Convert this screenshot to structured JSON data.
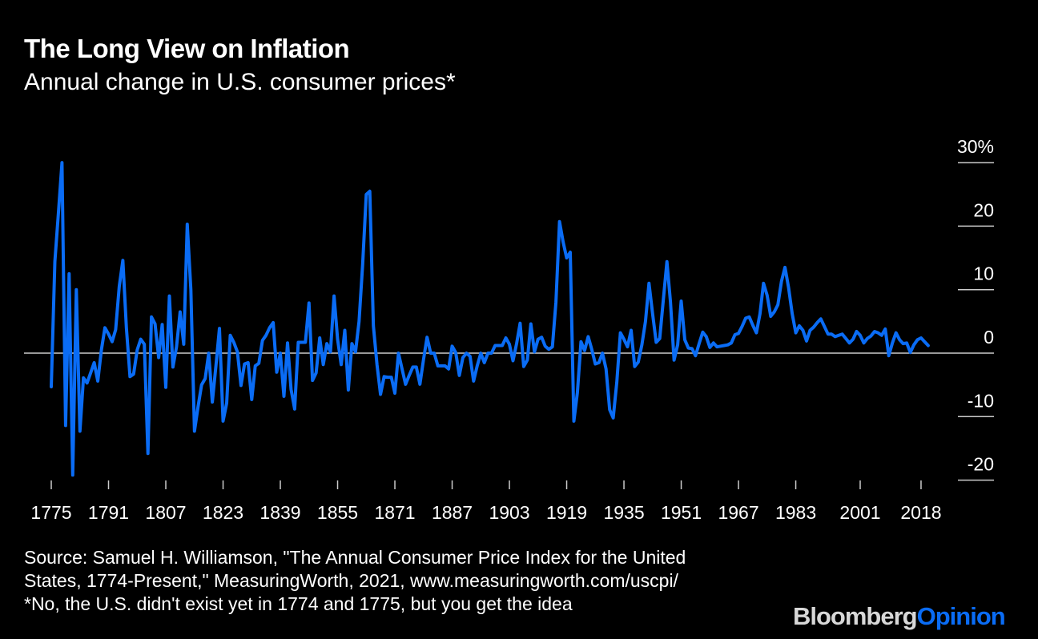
{
  "title": "The Long View on Inflation",
  "subtitle": "Annual change in U.S. consumer prices*",
  "source_line1": "Source: Samuel H. Williamson, \"The Annual Consumer Price Index for the United",
  "source_line2": "States, 1774-Present,\" MeasuringWorth, 2021, www.measuringworth.com/uscpi/",
  "footnote": "*No, the U.S. didn't exist yet in 1774 and 1775, but you get the idea",
  "logo": {
    "part1": "Bloomberg",
    "part2": "Opinion"
  },
  "colors": {
    "background": "#000000",
    "line": "#0a6cf5",
    "axis": "#cccccc"
  },
  "chart_data": {
    "type": "line",
    "title": "The Long View on Inflation",
    "subtitle": "Annual change in U.S. consumer prices*",
    "xlabel": "",
    "ylabel": "",
    "ylim": [
      -20,
      30
    ],
    "y_unit": "%",
    "y_axis_position": "right",
    "y_ticks": [
      30,
      20,
      10,
      0,
      -10,
      -20
    ],
    "y_tick_labels": [
      "30%",
      "20",
      "10",
      "0",
      "-10",
      "-20"
    ],
    "x_ticks": [
      1775,
      1791,
      1807,
      1823,
      1839,
      1855,
      1871,
      1887,
      1903,
      1919,
      1935,
      1951,
      1967,
      1983,
      2001,
      2018
    ],
    "x_tick_labels": [
      "1775",
      "1791",
      "1807",
      "1823",
      "1839",
      "1855",
      "1871",
      "1887",
      "1903",
      "1919",
      "1935",
      "1951",
      "1967",
      "1983",
      "2001",
      "2018"
    ],
    "grid": false,
    "legend": "none",
    "series": [
      {
        "color": "#0a6cf5",
        "points": [
          [
            1775,
            -5.3
          ],
          [
            1776,
            14.4
          ],
          [
            1777,
            22
          ],
          [
            1778,
            30
          ],
          [
            1779,
            -11.4
          ],
          [
            1780,
            12.5
          ],
          [
            1781,
            -19.2
          ],
          [
            1782,
            10
          ],
          [
            1783,
            -12.3
          ],
          [
            1784,
            -3.9
          ],
          [
            1785,
            -4.7
          ],
          [
            1786,
            -3.1
          ],
          [
            1787,
            -1.5
          ],
          [
            1788,
            -4.4
          ],
          [
            1789,
            0.5
          ],
          [
            1790,
            4.0
          ],
          [
            1791,
            3.0
          ],
          [
            1792,
            1.8
          ],
          [
            1793,
            3.7
          ],
          [
            1794,
            10.5
          ],
          [
            1795,
            14.6
          ],
          [
            1796,
            4
          ],
          [
            1797,
            -3.7
          ],
          [
            1798,
            -3.3
          ],
          [
            1799,
            0.5
          ],
          [
            1800,
            2.2
          ],
          [
            1801,
            1.4
          ],
          [
            1802,
            -15.8
          ],
          [
            1803,
            5.7
          ],
          [
            1804,
            4.6
          ],
          [
            1805,
            -0.7
          ],
          [
            1806,
            4.5
          ],
          [
            1807,
            -5.4
          ],
          [
            1808,
            9.0
          ],
          [
            1809,
            -2.2
          ],
          [
            1810,
            1.0
          ],
          [
            1811,
            6.5
          ],
          [
            1812,
            1.4
          ],
          [
            1813,
            20.3
          ],
          [
            1814,
            10
          ],
          [
            1815,
            -12.3
          ],
          [
            1816,
            -8.5
          ],
          [
            1817,
            -5.0
          ],
          [
            1818,
            -4.0
          ],
          [
            1819,
            0.0
          ],
          [
            1820,
            -7.7
          ],
          [
            1821,
            -2.0
          ],
          [
            1822,
            3.9
          ],
          [
            1823,
            -10.7
          ],
          [
            1824,
            -7.9
          ],
          [
            1825,
            2.8
          ],
          [
            1826,
            1.7
          ],
          [
            1827,
            0.2
          ],
          [
            1828,
            -5.1
          ],
          [
            1829,
            -1.7
          ],
          [
            1830,
            -1.5
          ],
          [
            1831,
            -7.3
          ],
          [
            1832,
            -2.0
          ],
          [
            1833,
            -1.6
          ],
          [
            1834,
            2.0
          ],
          [
            1835,
            2.8
          ],
          [
            1836,
            4.0
          ],
          [
            1837,
            4.8
          ],
          [
            1838,
            -3.0
          ],
          [
            1839,
            0.0
          ],
          [
            1840,
            -6.8
          ],
          [
            1841,
            1.6
          ],
          [
            1842,
            -5.7
          ],
          [
            1843,
            -8.8
          ],
          [
            1844,
            1.7
          ],
          [
            1845,
            1.7
          ],
          [
            1846,
            1.7
          ],
          [
            1847,
            7.9
          ],
          [
            1848,
            -4.3
          ],
          [
            1849,
            -3.1
          ],
          [
            1850,
            2.4
          ],
          [
            1851,
            -1.8
          ],
          [
            1852,
            1.5
          ],
          [
            1853,
            0.2
          ],
          [
            1854,
            9.0
          ],
          [
            1855,
            2.2
          ],
          [
            1856,
            -1.8
          ],
          [
            1857,
            3.6
          ],
          [
            1858,
            -5.8
          ],
          [
            1859,
            1.5
          ],
          [
            1860,
            0.2
          ],
          [
            1861,
            5.0
          ],
          [
            1862,
            14.0
          ],
          [
            1863,
            25.0
          ],
          [
            1864,
            25.5
          ],
          [
            1865,
            4.3
          ],
          [
            1866,
            -1.8
          ],
          [
            1867,
            -6.5
          ],
          [
            1868,
            -3.7
          ],
          [
            1869,
            -3.8
          ],
          [
            1870,
            -3.8
          ],
          [
            1871,
            -6.3
          ],
          [
            1872,
            0.0
          ],
          [
            1873,
            -2.5
          ],
          [
            1874,
            -4.9
          ],
          [
            1875,
            -3.5
          ],
          [
            1876,
            -2.2
          ],
          [
            1877,
            -2.2
          ],
          [
            1878,
            -4.9
          ],
          [
            1879,
            -1.0
          ],
          [
            1880,
            2.5
          ],
          [
            1881,
            0.0
          ],
          [
            1882,
            0.0
          ],
          [
            1883,
            -2.0
          ],
          [
            1884,
            -2.0
          ],
          [
            1885,
            -2.0
          ],
          [
            1886,
            -2.5
          ],
          [
            1887,
            1.1
          ],
          [
            1888,
            0.1
          ],
          [
            1889,
            -3.5
          ],
          [
            1890,
            -0.7
          ],
          [
            1891,
            0.0
          ],
          [
            1892,
            -0.5
          ],
          [
            1893,
            -4.4
          ],
          [
            1894,
            -2.0
          ],
          [
            1895,
            0.0
          ],
          [
            1896,
            -1.5
          ],
          [
            1897,
            0.0
          ],
          [
            1898,
            0.0
          ],
          [
            1899,
            1.2
          ],
          [
            1900,
            1.2
          ],
          [
            1901,
            1.2
          ],
          [
            1902,
            2.4
          ],
          [
            1903,
            1.4
          ],
          [
            1904,
            -1.2
          ],
          [
            1905,
            1.5
          ],
          [
            1906,
            4.7
          ],
          [
            1907,
            -2.1
          ],
          [
            1908,
            -1.1
          ],
          [
            1909,
            4.6
          ],
          [
            1910,
            0.2
          ],
          [
            1911,
            2.2
          ],
          [
            1912,
            2.5
          ],
          [
            1913,
            1.1
          ],
          [
            1914,
            0.6
          ],
          [
            1915,
            1.0
          ],
          [
            1916,
            8.0
          ],
          [
            1917,
            20.7
          ],
          [
            1918,
            17.5
          ],
          [
            1919,
            15.0
          ],
          [
            1920,
            15.9
          ],
          [
            1921,
            -10.7
          ],
          [
            1922,
            -6.2
          ],
          [
            1923,
            1.8
          ],
          [
            1924,
            0.4
          ],
          [
            1925,
            2.6
          ],
          [
            1926,
            0.6
          ],
          [
            1927,
            -1.7
          ],
          [
            1928,
            -1.5
          ],
          [
            1929,
            0.0
          ],
          [
            1930,
            -2.5
          ],
          [
            1931,
            -8.9
          ],
          [
            1932,
            -10.2
          ],
          [
            1933,
            -4.6
          ],
          [
            1934,
            3.2
          ],
          [
            1935,
            2.2
          ],
          [
            1936,
            1.0
          ],
          [
            1937,
            3.6
          ],
          [
            1938,
            -2.1
          ],
          [
            1939,
            -1.4
          ],
          [
            1940,
            1.3
          ],
          [
            1941,
            5.0
          ],
          [
            1942,
            11.0
          ],
          [
            1943,
            6.2
          ],
          [
            1944,
            1.7
          ],
          [
            1945,
            2.3
          ],
          [
            1946,
            8.4
          ],
          [
            1947,
            14.4
          ],
          [
            1948,
            8.1
          ],
          [
            1949,
            -1.1
          ],
          [
            1950,
            1.3
          ],
          [
            1951,
            8.2
          ],
          [
            1952,
            2.1
          ],
          [
            1953,
            0.8
          ],
          [
            1954,
            0.7
          ],
          [
            1955,
            -0.4
          ],
          [
            1956,
            1.5
          ],
          [
            1957,
            3.3
          ],
          [
            1958,
            2.6
          ],
          [
            1959,
            0.9
          ],
          [
            1960,
            1.6
          ],
          [
            1961,
            1.0
          ],
          [
            1962,
            1.1
          ],
          [
            1963,
            1.2
          ],
          [
            1964,
            1.3
          ],
          [
            1965,
            1.6
          ],
          [
            1966,
            2.9
          ],
          [
            1967,
            3.1
          ],
          [
            1968,
            4.2
          ],
          [
            1969,
            5.5
          ],
          [
            1970,
            5.7
          ],
          [
            1971,
            4.4
          ],
          [
            1972,
            3.2
          ],
          [
            1973,
            6.2
          ],
          [
            1974,
            11.0
          ],
          [
            1975,
            9.1
          ],
          [
            1976,
            5.8
          ],
          [
            1977,
            6.5
          ],
          [
            1978,
            7.6
          ],
          [
            1979,
            11.3
          ],
          [
            1980,
            13.5
          ],
          [
            1981,
            10.3
          ],
          [
            1982,
            6.2
          ],
          [
            1983,
            3.2
          ],
          [
            1984,
            4.3
          ],
          [
            1985,
            3.6
          ],
          [
            1986,
            1.9
          ],
          [
            1987,
            3.6
          ],
          [
            1988,
            4.1
          ],
          [
            1989,
            4.8
          ],
          [
            1990,
            5.4
          ],
          [
            1991,
            4.2
          ],
          [
            1992,
            3.0
          ],
          [
            1993,
            3.0
          ],
          [
            1994,
            2.6
          ],
          [
            1995,
            2.8
          ],
          [
            1996,
            3.0
          ],
          [
            1997,
            2.3
          ],
          [
            1998,
            1.6
          ],
          [
            1999,
            2.2
          ],
          [
            2000,
            3.4
          ],
          [
            2001,
            2.8
          ],
          [
            2002,
            1.6
          ],
          [
            2003,
            2.3
          ],
          [
            2004,
            2.7
          ],
          [
            2005,
            3.4
          ],
          [
            2006,
            3.2
          ],
          [
            2007,
            2.8
          ],
          [
            2008,
            3.8
          ],
          [
            2009,
            -0.4
          ],
          [
            2010,
            1.6
          ],
          [
            2011,
            3.2
          ],
          [
            2012,
            2.1
          ],
          [
            2013,
            1.5
          ],
          [
            2014,
            1.6
          ],
          [
            2015,
            0.1
          ],
          [
            2016,
            1.3
          ],
          [
            2017,
            2.1
          ],
          [
            2018,
            2.4
          ],
          [
            2019,
            1.8
          ],
          [
            2020,
            1.2
          ]
        ]
      }
    ]
  }
}
